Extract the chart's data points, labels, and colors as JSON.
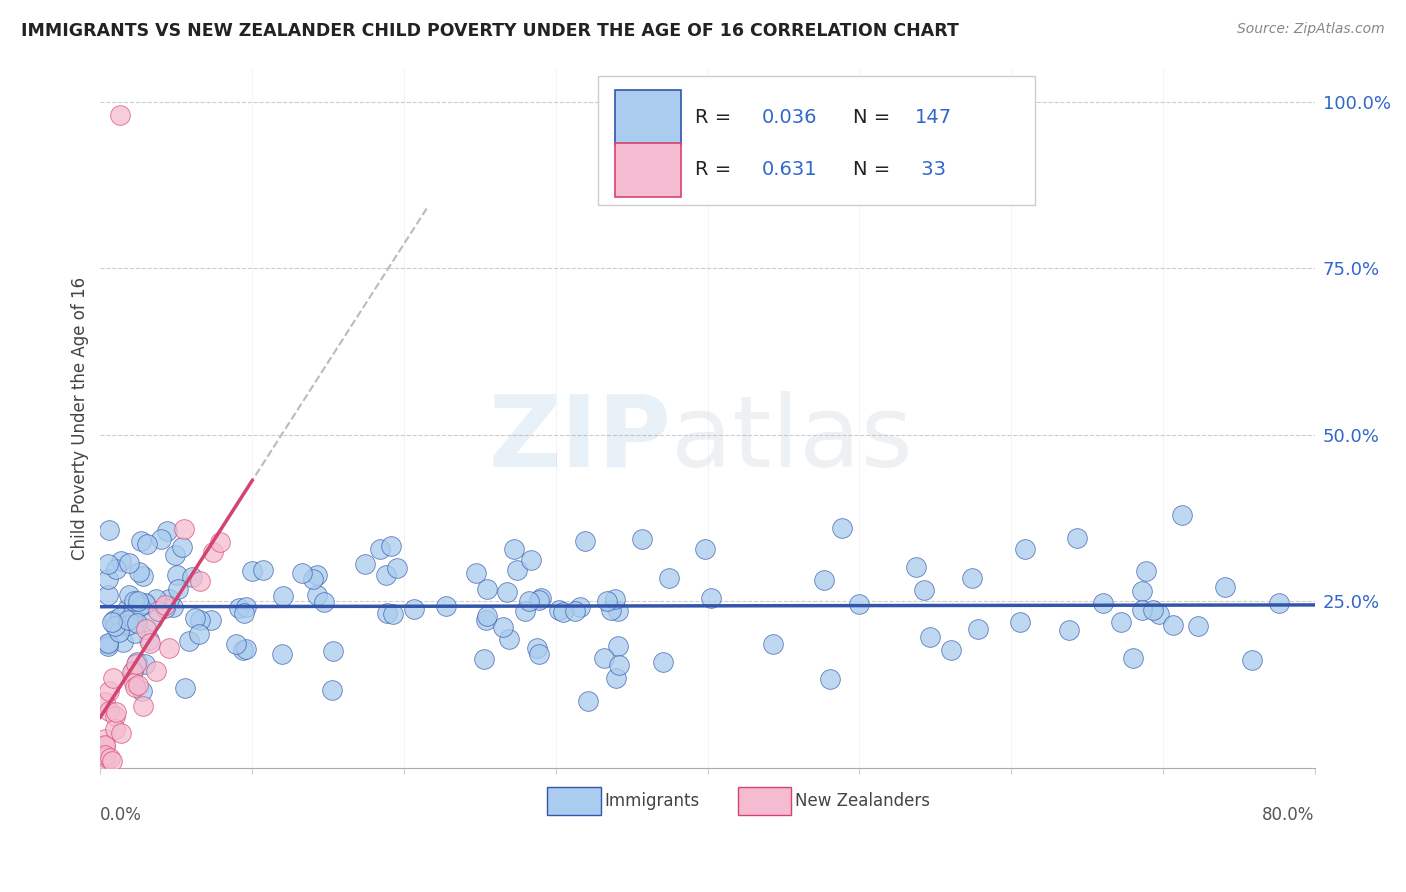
{
  "title": "IMMIGRANTS VS NEW ZEALANDER CHILD POVERTY UNDER THE AGE OF 16 CORRELATION CHART",
  "source": "Source: ZipAtlas.com",
  "ylabel": "Child Poverty Under the Age of 16",
  "ytick_labels": [
    "",
    "25.0%",
    "50.0%",
    "75.0%",
    "100.0%"
  ],
  "legend_immigrants_R": "0.036",
  "legend_immigrants_N": "147",
  "legend_nz_R": "0.631",
  "legend_nz_N": "33",
  "immigrant_color": "#aaccee",
  "nz_color": "#f5bbd0",
  "trend_immigrant_color": "#3355aa",
  "trend_nz_color": "#d44470",
  "legend_text_color": "#3366cc",
  "title_color": "#222222",
  "background_color": "#ffffff",
  "grid_color": "#cccccc",
  "xlim": [
    0.0,
    0.8
  ],
  "ylim": [
    0.0,
    1.05
  ]
}
